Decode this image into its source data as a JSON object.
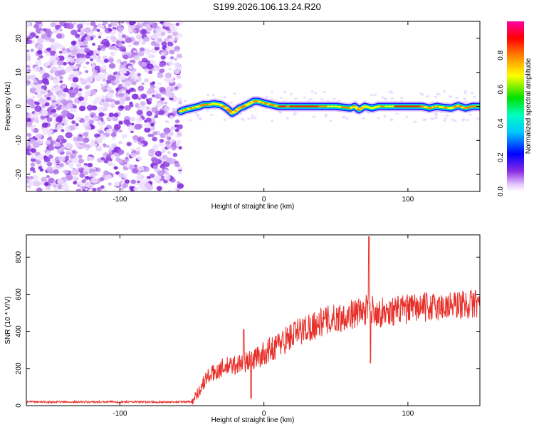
{
  "title": "S199.2026.106.13.24.R20",
  "chart_data": [
    {
      "type": "heatmap",
      "name": "spectrogram",
      "xlabel": "Height of straight line (km)",
      "ylabel": "Frequency (Hz)",
      "xlim": [
        -165,
        150
      ],
      "ylim": [
        -25,
        25
      ],
      "xticks": [
        -100,
        0,
        100
      ],
      "yticks": [
        -20,
        -10,
        0,
        10,
        20
      ],
      "noise_region_x": [
        -165,
        -58
      ],
      "signal_track": {
        "x": [
          -58,
          -55,
          -50,
          -45,
          -42,
          -38,
          -35,
          -30,
          -26,
          -22,
          -20,
          -17,
          -14,
          -10,
          -7,
          -4,
          0,
          5,
          10,
          20,
          30,
          40,
          50,
          60,
          63,
          66,
          68,
          70,
          75,
          80,
          90,
          100,
          110,
          115,
          120,
          125,
          130,
          135,
          140,
          145,
          150
        ],
        "y": [
          -1.5,
          -1.0,
          -0.5,
          0.0,
          0.5,
          0.5,
          0.8,
          0.5,
          -0.5,
          -2.0,
          -1.5,
          -0.5,
          0.0,
          0.8,
          1.5,
          1.5,
          1.0,
          0.5,
          0.0,
          0.0,
          0.0,
          0.0,
          0.0,
          -0.5,
          0.0,
          -1.0,
          -0.5,
          0.0,
          -0.5,
          0.0,
          0.0,
          0.0,
          0.0,
          -0.5,
          0.0,
          -0.3,
          -0.5,
          0.2,
          -0.5,
          0.0,
          0.0
        ]
      },
      "colorbar": {
        "label": "Normalized spectral amplitude",
        "range": [
          0.0,
          1.0
        ],
        "ticks": [
          "0.0",
          "0.2",
          "0.4",
          "0.6",
          "0.8"
        ],
        "tick_values": [
          0.0,
          0.2,
          0.4,
          0.6,
          0.8
        ]
      }
    },
    {
      "type": "line",
      "name": "snr",
      "xlabel": "Height of straight line (km)",
      "ylabel": "SNR (10 * V/V)",
      "xlim": [
        -165,
        150
      ],
      "ylim": [
        0,
        920
      ],
      "xticks": [
        -100,
        0,
        100
      ],
      "yticks": [
        0,
        200,
        400,
        600,
        800
      ],
      "color": "#e8302a",
      "trend": {
        "x": [
          -165,
          -100,
          -60,
          -50,
          -45,
          -40,
          -30,
          -20,
          -10,
          0,
          10,
          20,
          30,
          40,
          50,
          60,
          70,
          73,
          80,
          90,
          100,
          110,
          120,
          130,
          140,
          150
        ],
        "y": [
          20,
          20,
          20,
          22,
          80,
          150,
          200,
          220,
          240,
          280,
          330,
          380,
          420,
          450,
          470,
          490,
          510,
          530,
          500,
          510,
          520,
          530,
          530,
          540,
          545,
          550
        ]
      },
      "spikes": [
        {
          "x": -14,
          "y": 410
        },
        {
          "x": -9,
          "y": 40
        },
        {
          "x": 73,
          "y": 910
        },
        {
          "x": 74,
          "y": 230
        },
        {
          "x": 147,
          "y": 620
        }
      ]
    }
  ]
}
